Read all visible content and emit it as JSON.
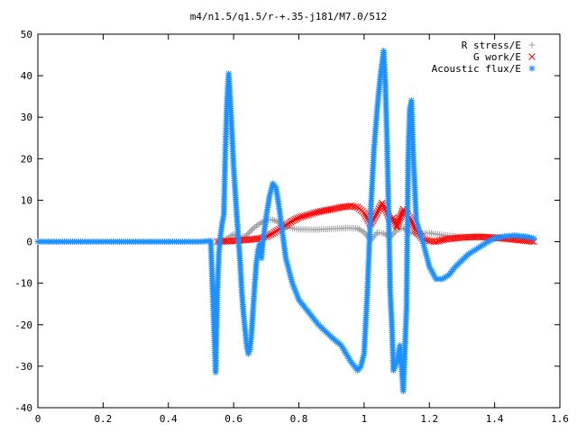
{
  "chart_data": {
    "type": "scatter",
    "title": "m4/n1.5/q1.5/r-+.35-j181/M7.0/512",
    "xlabel": "",
    "ylabel": "",
    "xlim": [
      0,
      1.6
    ],
    "ylim": [
      -40,
      50
    ],
    "xticks": [
      0,
      0.2,
      0.4,
      0.6,
      0.8,
      1,
      1.2,
      1.4,
      1.6
    ],
    "yticks": [
      -40,
      -30,
      -20,
      -10,
      0,
      10,
      20,
      30,
      40,
      50
    ],
    "xtick_labels": [
      "0",
      "0.2",
      "0.4",
      "0.6",
      "0.8",
      "1",
      "1.2",
      "1.4",
      "1.6"
    ],
    "ytick_labels": [
      "-40",
      "-30",
      "-20",
      "-10",
      "0",
      "10",
      "20",
      "30",
      "40",
      "50"
    ],
    "grid": false,
    "legend_position": "top-right",
    "series": [
      {
        "name": "R stress/E",
        "marker": "plus",
        "color": "#a0a0a0",
        "points": [
          [
            0.55,
            0
          ],
          [
            0.58,
            0.8
          ],
          [
            0.6,
            1.8
          ],
          [
            0.62,
            0.6
          ],
          [
            0.64,
            1.6
          ],
          [
            0.66,
            3.2
          ],
          [
            0.68,
            4.4
          ],
          [
            0.7,
            5.2
          ],
          [
            0.72,
            5.3
          ],
          [
            0.74,
            4.6
          ],
          [
            0.76,
            3.7
          ],
          [
            0.78,
            3.2
          ],
          [
            0.8,
            3.0
          ],
          [
            0.85,
            2.9
          ],
          [
            0.9,
            3.1
          ],
          [
            0.95,
            3.3
          ],
          [
            0.98,
            3.2
          ],
          [
            1.0,
            2.3
          ],
          [
            1.02,
            0.3
          ],
          [
            1.04,
            2.2
          ],
          [
            1.06,
            2.0
          ],
          [
            1.08,
            1.0
          ],
          [
            1.1,
            2.8
          ],
          [
            1.12,
            3.3
          ],
          [
            1.14,
            2.2
          ],
          [
            1.16,
            1.8
          ],
          [
            1.18,
            2.0
          ],
          [
            1.2,
            2.1
          ],
          [
            1.25,
            1.5
          ],
          [
            1.3,
            1.2
          ],
          [
            1.35,
            1.0
          ],
          [
            1.4,
            0.9
          ],
          [
            1.45,
            0.8
          ],
          [
            1.5,
            0.7
          ],
          [
            1.52,
            0.6
          ]
        ]
      },
      {
        "name": "G work/E",
        "marker": "cross",
        "color": "#ff0000",
        "points": [
          [
            0.55,
            0
          ],
          [
            0.6,
            0.2
          ],
          [
            0.65,
            0.5
          ],
          [
            0.68,
            0.8
          ],
          [
            0.7,
            1.2
          ],
          [
            0.72,
            2.0
          ],
          [
            0.74,
            3.0
          ],
          [
            0.76,
            4.0
          ],
          [
            0.78,
            5.0
          ],
          [
            0.8,
            5.8
          ],
          [
            0.83,
            6.5
          ],
          [
            0.86,
            7.2
          ],
          [
            0.9,
            7.8
          ],
          [
            0.93,
            8.3
          ],
          [
            0.96,
            8.6
          ],
          [
            0.98,
            8.3
          ],
          [
            1.0,
            7.0
          ],
          [
            1.02,
            4.2
          ],
          [
            1.04,
            7.0
          ],
          [
            1.055,
            9.3
          ],
          [
            1.07,
            7.0
          ],
          [
            1.08,
            5.2
          ],
          [
            1.09,
            5.8
          ],
          [
            1.1,
            3.5
          ],
          [
            1.12,
            7.8
          ],
          [
            1.14,
            5.8
          ],
          [
            1.16,
            2.5
          ],
          [
            1.18,
            0.6
          ],
          [
            1.2,
            0.2
          ],
          [
            1.22,
            0
          ],
          [
            1.25,
            0.6
          ],
          [
            1.3,
            1.0
          ],
          [
            1.35,
            1.2
          ],
          [
            1.4,
            1.0
          ],
          [
            1.45,
            0.6
          ],
          [
            1.5,
            0.2
          ],
          [
            1.52,
            0
          ]
        ]
      },
      {
        "name": "Acoustic flux/E",
        "marker": "star",
        "color": "#1e90ff",
        "points": [
          [
            0.0,
            0
          ],
          [
            0.1,
            0
          ],
          [
            0.2,
            0
          ],
          [
            0.3,
            0
          ],
          [
            0.4,
            0
          ],
          [
            0.5,
            0
          ],
          [
            0.53,
            0.2
          ],
          [
            0.545,
            -31.5
          ],
          [
            0.55,
            -12.5
          ],
          [
            0.555,
            -2.5
          ],
          [
            0.56,
            1.5
          ],
          [
            0.565,
            4.5
          ],
          [
            0.57,
            6.5
          ],
          [
            0.575,
            22.5
          ],
          [
            0.58,
            34
          ],
          [
            0.585,
            40.5
          ],
          [
            0.59,
            33.5
          ],
          [
            0.595,
            26
          ],
          [
            0.6,
            18
          ],
          [
            0.605,
            12
          ],
          [
            0.61,
            6
          ],
          [
            0.615,
            0.5
          ],
          [
            0.62,
            -5
          ],
          [
            0.625,
            -12
          ],
          [
            0.63,
            -17
          ],
          [
            0.635,
            -21
          ],
          [
            0.64,
            -25
          ],
          [
            0.645,
            -27
          ],
          [
            0.65,
            -26
          ],
          [
            0.655,
            -22
          ],
          [
            0.66,
            -16
          ],
          [
            0.665,
            -10
          ],
          [
            0.67,
            -5
          ],
          [
            0.675,
            -2
          ],
          [
            0.68,
            -0.5
          ],
          [
            0.685,
            -4
          ],
          [
            0.69,
            0
          ],
          [
            0.7,
            6
          ],
          [
            0.71,
            11
          ],
          [
            0.72,
            14
          ],
          [
            0.73,
            13
          ],
          [
            0.74,
            8
          ],
          [
            0.75,
            2
          ],
          [
            0.76,
            -4
          ],
          [
            0.78,
            -10
          ],
          [
            0.8,
            -14
          ],
          [
            0.83,
            -17
          ],
          [
            0.86,
            -20
          ],
          [
            0.9,
            -23
          ],
          [
            0.93,
            -25
          ],
          [
            0.96,
            -29
          ],
          [
            0.98,
            -31
          ],
          [
            0.99,
            -30
          ],
          [
            1.0,
            -27
          ],
          [
            1.01,
            -12
          ],
          [
            1.02,
            7
          ],
          [
            1.03,
            22
          ],
          [
            1.04,
            32
          ],
          [
            1.05,
            40
          ],
          [
            1.06,
            46
          ],
          [
            1.065,
            38
          ],
          [
            1.07,
            25
          ],
          [
            1.075,
            8
          ],
          [
            1.08,
            -12
          ],
          [
            1.085,
            -20
          ],
          [
            1.09,
            -31
          ],
          [
            1.1,
            -29
          ],
          [
            1.11,
            -25
          ],
          [
            1.12,
            -36
          ],
          [
            1.13,
            -16
          ],
          [
            1.135,
            20
          ],
          [
            1.14,
            32
          ],
          [
            1.145,
            34
          ],
          [
            1.15,
            22
          ],
          [
            1.16,
            5
          ],
          [
            1.18,
            0
          ],
          [
            1.2,
            -6
          ],
          [
            1.22,
            -9
          ],
          [
            1.24,
            -9
          ],
          [
            1.26,
            -8
          ],
          [
            1.28,
            -6
          ],
          [
            1.3,
            -4.5
          ],
          [
            1.32,
            -3
          ],
          [
            1.35,
            -1.5
          ],
          [
            1.38,
            0
          ],
          [
            1.4,
            0.8
          ],
          [
            1.43,
            1.3
          ],
          [
            1.46,
            1.5
          ],
          [
            1.5,
            1.2
          ],
          [
            1.52,
            0.8
          ]
        ]
      }
    ]
  }
}
